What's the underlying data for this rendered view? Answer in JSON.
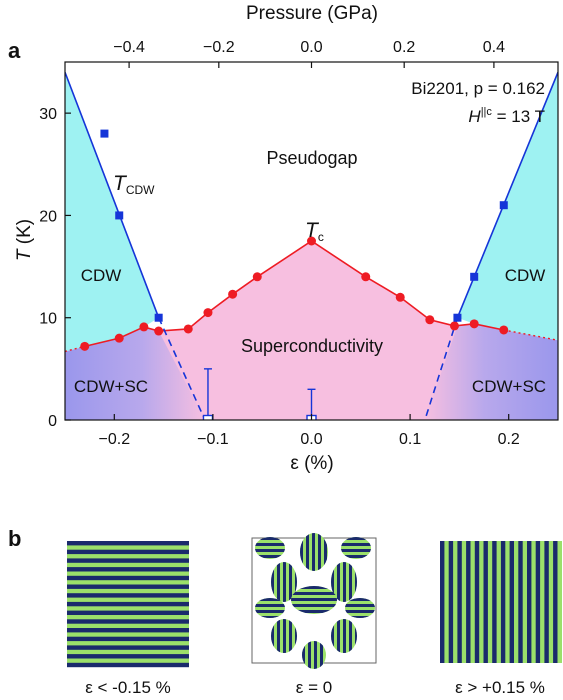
{
  "panel_a_label": "a",
  "panel_b_label": "b",
  "chart_data": {
    "type": "scatter",
    "xlabel": "ε (%)",
    "ylabel_main": "T",
    "ylabel_unit": " (K)",
    "top_axis_label": "Pressure (GPa)",
    "xlim": [
      -0.25,
      0.25
    ],
    "ylim": [
      0,
      35
    ],
    "x_ticks": [
      -0.2,
      -0.1,
      0.0,
      0.1,
      0.2
    ],
    "x_tick_labels": [
      "−0.2",
      "−0.1",
      "0.0",
      "0.1",
      "0.2"
    ],
    "y_ticks": [
      0,
      10,
      20,
      30
    ],
    "y_tick_labels": [
      "0",
      "10",
      "20",
      "30"
    ],
    "top_ticks": [
      -0.4,
      -0.2,
      0.0,
      0.2,
      0.4
    ],
    "top_tick_labels": [
      "−0.4",
      "−0.2",
      "0.0",
      "0.2",
      "0.4"
    ],
    "top_tick_strain": [
      -0.185,
      -0.094,
      0.0,
      0.094,
      0.185
    ],
    "sample": {
      "line1": "Bi2201, p = 0.162",
      "line2": "H",
      "line2_sup": "||c",
      "line2_rest": " = 13 T"
    },
    "region_labels": {
      "pseudogap": "Pseudogap",
      "superconductivity": "Superconductivity",
      "cdw_left": "CDW",
      "cdw_right": "CDW",
      "cdwsc_left": "CDW+SC",
      "cdwsc_right": "CDW+SC"
    },
    "curve_labels": {
      "tcdw_main": "T",
      "tcdw_sub": "CDW",
      "tc_main": "T",
      "tc_sub": "c"
    },
    "series": [
      {
        "name": "Tc",
        "marker": "circle",
        "color": "#ee1c24",
        "x": [
          -0.23,
          -0.195,
          -0.17,
          -0.155,
          -0.125,
          -0.105,
          -0.08,
          -0.055,
          0.0,
          0.055,
          0.09,
          0.12,
          0.145,
          0.165,
          0.195
        ],
        "y": [
          7.2,
          8.0,
          9.1,
          8.7,
          8.9,
          10.5,
          12.3,
          14.0,
          17.5,
          14.0,
          12.0,
          9.8,
          9.2,
          9.4,
          8.8
        ]
      },
      {
        "name": "TCDW",
        "marker": "square",
        "color": "#1535d8",
        "x": [
          -0.21,
          -0.195,
          -0.155,
          0.148,
          0.165,
          0.195
        ],
        "y": [
          28.0,
          20.0,
          10.0,
          10.0,
          14.0,
          21.0
        ]
      },
      {
        "name": "T_CDW_open",
        "marker": "open-square",
        "color": "#1535d8",
        "x": [
          -0.105,
          0.0
        ],
        "y": [
          0.0,
          0.0
        ],
        "err_upper": [
          5.0,
          3.0
        ]
      }
    ],
    "tcdw_line_left": {
      "x": [
        -0.25,
        -0.155
      ],
      "y": [
        34.0,
        10.0
      ]
    },
    "tcdw_line_right": {
      "x": [
        0.148,
        0.25
      ],
      "y": [
        10.0,
        34.0
      ]
    },
    "tcdw_dashed_left": {
      "x": [
        -0.155,
        -0.108
      ],
      "y": [
        10.0,
        0.0
      ]
    },
    "tcdw_dashed_right": {
      "x": [
        0.148,
        0.115
      ],
      "y": [
        10.0,
        0.0
      ]
    },
    "tc_dotted_left": {
      "x": [
        -0.25,
        -0.23
      ],
      "y": [
        6.7,
        7.2
      ]
    },
    "tc_dotted_right": {
      "x": [
        0.195,
        0.25
      ],
      "y": [
        8.8,
        7.8
      ]
    },
    "colors": {
      "cdw": "#9ef2f2",
      "sc": "#f7bfe0",
      "cdwsc": "#9a97ec",
      "tc": "#ee1c24",
      "tcdw": "#1535d8"
    }
  },
  "panel_b": {
    "captions": [
      "ε < -0.15 %",
      "ε = 0",
      "ε > +0.15 %"
    ],
    "stripe_colors": {
      "dark": "#1a2a6c",
      "light": "#9be06a"
    }
  }
}
